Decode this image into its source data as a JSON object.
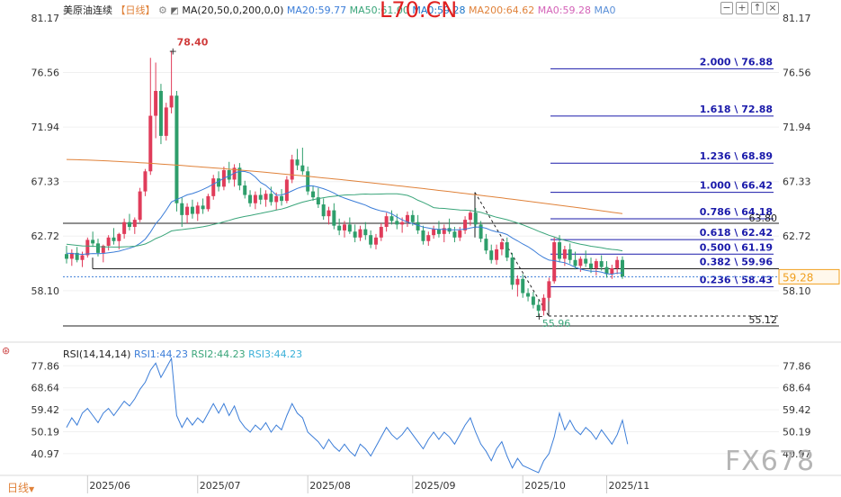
{
  "header": {
    "symbol": "美原油连续",
    "period": "日线",
    "ma_label": "MA(20,50,0,200,0,0)",
    "ma_values": [
      {
        "label": "MA20:59.77",
        "color": "#3b7dd8"
      },
      {
        "label": "MA50:61.00",
        "color": "#3aa57a"
      },
      {
        "label": "MA0:59.28",
        "color": "#1a74c8"
      },
      {
        "label": "MA200:64.62",
        "color": "#e0823a"
      },
      {
        "label": "MA0:59.28",
        "color": "#d463b8"
      },
      {
        "label": "MA0",
        "color": "#5a8fd8"
      }
    ],
    "watermark_top": "L70.CN"
  },
  "rsi_header": {
    "label": "RSI(14,14,14)",
    "values": [
      {
        "label": "RSI1:44.23",
        "color": "#3b7dd8"
      },
      {
        "label": "RSI2:44.23",
        "color": "#3aa57a"
      },
      {
        "label": "RSI3:44.23",
        "color": "#3ab0d8"
      }
    ]
  },
  "footer": {
    "period_button": "日线",
    "watermark": "FX678"
  },
  "colors": {
    "up": "#e03c5a",
    "down": "#2e9e6b",
    "ma20": "#3b7dd8",
    "ma50": "#3aa57a",
    "ma200": "#e0823a",
    "rsi": "#3b7dd8",
    "fib": "#1a1aaa",
    "current_price": "#f0a020"
  },
  "chart_data": [
    {
      "type": "candlestick",
      "title": "美原油连续 日线",
      "y_ticks": [
        "81.17",
        "76.56",
        "71.94",
        "67.33",
        "62.72",
        "58.10"
      ],
      "ylim": [
        55.12,
        81.17
      ],
      "x_ticks": [
        "2025/06",
        "2025/07",
        "2025/08",
        "2025/09",
        "2025/10",
        "2025/11"
      ],
      "annotations": {
        "high": "78.40",
        "low": "55.96",
        "level_low": "55.12",
        "level_mid": "63.80",
        "current_price": "59.28"
      },
      "fibonacci": [
        {
          "ratio": "2.000",
          "price": "76.88",
          "value": 76.88
        },
        {
          "ratio": "1.618",
          "price": "72.88",
          "value": 72.88
        },
        {
          "ratio": "1.236",
          "price": "68.89",
          "value": 68.89
        },
        {
          "ratio": "1.000",
          "price": "66.42",
          "value": 66.42
        },
        {
          "ratio": "0.786",
          "price": "64.18",
          "value": 64.18
        },
        {
          "ratio": "0.618",
          "price": "62.42",
          "value": 62.42
        },
        {
          "ratio": "0.500",
          "price": "61.19",
          "value": 61.19
        },
        {
          "ratio": "0.382",
          "price": "59.96",
          "value": 59.96
        },
        {
          "ratio": "0.236",
          "price": "58.43",
          "value": 58.43
        }
      ],
      "candles": [
        {
          "o": 61.2,
          "h": 61.9,
          "l": 60.4,
          "c": 60.8
        },
        {
          "o": 60.8,
          "h": 61.6,
          "l": 60.2,
          "c": 61.3
        },
        {
          "o": 61.3,
          "h": 61.8,
          "l": 60.5,
          "c": 60.7
        },
        {
          "o": 60.7,
          "h": 61.4,
          "l": 60.1,
          "c": 61.1
        },
        {
          "o": 61.1,
          "h": 62.6,
          "l": 60.9,
          "c": 62.4
        },
        {
          "o": 62.4,
          "h": 63.1,
          "l": 61.8,
          "c": 62.1
        },
        {
          "o": 62.1,
          "h": 62.5,
          "l": 61.0,
          "c": 61.3
        },
        {
          "o": 61.3,
          "h": 62.0,
          "l": 60.5,
          "c": 61.9
        },
        {
          "o": 61.9,
          "h": 62.8,
          "l": 61.5,
          "c": 62.6
        },
        {
          "o": 62.6,
          "h": 63.4,
          "l": 62.0,
          "c": 62.3
        },
        {
          "o": 62.3,
          "h": 63.0,
          "l": 61.6,
          "c": 62.9
        },
        {
          "o": 62.9,
          "h": 64.2,
          "l": 62.5,
          "c": 63.9
        },
        {
          "o": 63.9,
          "h": 64.6,
          "l": 63.2,
          "c": 63.5
        },
        {
          "o": 63.5,
          "h": 64.3,
          "l": 62.9,
          "c": 64.1
        },
        {
          "o": 64.1,
          "h": 66.8,
          "l": 63.9,
          "c": 66.5
        },
        {
          "o": 66.5,
          "h": 68.4,
          "l": 66.1,
          "c": 68.2
        },
        {
          "o": 68.2,
          "h": 77.8,
          "l": 67.9,
          "c": 72.9
        },
        {
          "o": 72.9,
          "h": 77.4,
          "l": 71.0,
          "c": 75.0
        },
        {
          "o": 75.0,
          "h": 75.6,
          "l": 70.5,
          "c": 71.2
        },
        {
          "o": 71.2,
          "h": 74.0,
          "l": 70.8,
          "c": 73.6
        },
        {
          "o": 73.6,
          "h": 78.4,
          "l": 73.1,
          "c": 74.6
        },
        {
          "o": 74.6,
          "h": 75.0,
          "l": 64.8,
          "c": 65.5
        },
        {
          "o": 65.5,
          "h": 66.0,
          "l": 63.5,
          "c": 64.5
        },
        {
          "o": 64.5,
          "h": 65.5,
          "l": 63.8,
          "c": 65.2
        },
        {
          "o": 65.2,
          "h": 65.8,
          "l": 64.2,
          "c": 64.6
        },
        {
          "o": 64.6,
          "h": 65.6,
          "l": 64.0,
          "c": 65.3
        },
        {
          "o": 65.3,
          "h": 65.9,
          "l": 64.6,
          "c": 65.0
        },
        {
          "o": 65.0,
          "h": 66.3,
          "l": 64.8,
          "c": 66.1
        },
        {
          "o": 66.1,
          "h": 67.9,
          "l": 65.8,
          "c": 67.6
        },
        {
          "o": 67.6,
          "h": 68.2,
          "l": 66.5,
          "c": 66.9
        },
        {
          "o": 66.9,
          "h": 68.6,
          "l": 66.6,
          "c": 68.3
        },
        {
          "o": 68.3,
          "h": 69.0,
          "l": 67.2,
          "c": 67.5
        },
        {
          "o": 67.5,
          "h": 68.8,
          "l": 66.9,
          "c": 68.5
        },
        {
          "o": 68.5,
          "h": 68.9,
          "l": 66.6,
          "c": 67.0
        },
        {
          "o": 67.0,
          "h": 67.4,
          "l": 65.9,
          "c": 66.2
        },
        {
          "o": 66.2,
          "h": 66.6,
          "l": 65.2,
          "c": 65.5
        },
        {
          "o": 65.5,
          "h": 66.5,
          "l": 65.0,
          "c": 66.2
        },
        {
          "o": 66.2,
          "h": 66.8,
          "l": 65.4,
          "c": 65.8
        },
        {
          "o": 65.8,
          "h": 66.6,
          "l": 65.2,
          "c": 66.3
        },
        {
          "o": 66.3,
          "h": 66.9,
          "l": 65.3,
          "c": 65.6
        },
        {
          "o": 65.6,
          "h": 66.4,
          "l": 64.9,
          "c": 66.1
        },
        {
          "o": 66.1,
          "h": 66.7,
          "l": 65.3,
          "c": 65.7
        },
        {
          "o": 65.7,
          "h": 67.8,
          "l": 65.5,
          "c": 67.5
        },
        {
          "o": 67.5,
          "h": 69.6,
          "l": 67.2,
          "c": 69.2
        },
        {
          "o": 69.2,
          "h": 70.1,
          "l": 68.3,
          "c": 68.7
        },
        {
          "o": 68.7,
          "h": 70.2,
          "l": 67.9,
          "c": 68.2
        },
        {
          "o": 68.2,
          "h": 68.6,
          "l": 66.2,
          "c": 66.5
        },
        {
          "o": 66.5,
          "h": 67.0,
          "l": 65.7,
          "c": 66.0
        },
        {
          "o": 66.0,
          "h": 66.8,
          "l": 65.1,
          "c": 65.4
        },
        {
          "o": 65.4,
          "h": 65.9,
          "l": 64.1,
          "c": 64.4
        },
        {
          "o": 64.4,
          "h": 65.2,
          "l": 63.7,
          "c": 64.9
        },
        {
          "o": 64.9,
          "h": 65.5,
          "l": 63.3,
          "c": 63.6
        },
        {
          "o": 63.6,
          "h": 64.2,
          "l": 62.8,
          "c": 63.2
        },
        {
          "o": 63.2,
          "h": 64.0,
          "l": 62.6,
          "c": 63.7
        },
        {
          "o": 63.7,
          "h": 64.3,
          "l": 62.9,
          "c": 63.1
        },
        {
          "o": 63.1,
          "h": 63.7,
          "l": 62.2,
          "c": 62.6
        },
        {
          "o": 62.6,
          "h": 63.6,
          "l": 62.3,
          "c": 63.3
        },
        {
          "o": 63.3,
          "h": 63.9,
          "l": 62.4,
          "c": 62.8
        },
        {
          "o": 62.8,
          "h": 63.2,
          "l": 61.7,
          "c": 62.0
        },
        {
          "o": 62.0,
          "h": 62.9,
          "l": 61.6,
          "c": 62.6
        },
        {
          "o": 62.6,
          "h": 63.8,
          "l": 62.3,
          "c": 63.5
        },
        {
          "o": 63.5,
          "h": 64.7,
          "l": 63.1,
          "c": 64.4
        },
        {
          "o": 64.4,
          "h": 64.9,
          "l": 63.7,
          "c": 64.0
        },
        {
          "o": 64.0,
          "h": 64.6,
          "l": 63.3,
          "c": 63.7
        },
        {
          "o": 63.7,
          "h": 64.3,
          "l": 63.0,
          "c": 63.9
        },
        {
          "o": 63.9,
          "h": 64.8,
          "l": 63.5,
          "c": 64.5
        },
        {
          "o": 64.5,
          "h": 64.9,
          "l": 63.6,
          "c": 63.9
        },
        {
          "o": 63.9,
          "h": 64.5,
          "l": 62.9,
          "c": 63.2
        },
        {
          "o": 63.2,
          "h": 63.6,
          "l": 62.0,
          "c": 62.3
        },
        {
          "o": 62.3,
          "h": 63.1,
          "l": 61.9,
          "c": 62.8
        },
        {
          "o": 62.8,
          "h": 63.6,
          "l": 62.5,
          "c": 63.3
        },
        {
          "o": 63.3,
          "h": 64.0,
          "l": 62.6,
          "c": 62.9
        },
        {
          "o": 62.9,
          "h": 63.7,
          "l": 62.2,
          "c": 63.4
        },
        {
          "o": 63.4,
          "h": 64.2,
          "l": 62.9,
          "c": 63.1
        },
        {
          "o": 63.1,
          "h": 63.5,
          "l": 62.2,
          "c": 62.6
        },
        {
          "o": 62.6,
          "h": 63.5,
          "l": 62.3,
          "c": 63.2
        },
        {
          "o": 63.2,
          "h": 64.4,
          "l": 62.9,
          "c": 64.1
        },
        {
          "o": 64.1,
          "h": 64.9,
          "l": 63.6,
          "c": 64.7
        },
        {
          "o": 64.7,
          "h": 65.1,
          "l": 63.4,
          "c": 63.7
        },
        {
          "o": 63.7,
          "h": 64.0,
          "l": 62.2,
          "c": 62.5
        },
        {
          "o": 62.5,
          "h": 62.9,
          "l": 61.2,
          "c": 61.5
        },
        {
          "o": 61.5,
          "h": 62.0,
          "l": 60.4,
          "c": 60.7
        },
        {
          "o": 60.7,
          "h": 62.0,
          "l": 60.3,
          "c": 61.6
        },
        {
          "o": 61.6,
          "h": 62.5,
          "l": 61.1,
          "c": 62.2
        },
        {
          "o": 62.2,
          "h": 62.6,
          "l": 60.6,
          "c": 60.9
        },
        {
          "o": 60.9,
          "h": 61.3,
          "l": 58.2,
          "c": 58.6
        },
        {
          "o": 58.6,
          "h": 59.4,
          "l": 57.6,
          "c": 59.1
        },
        {
          "o": 59.1,
          "h": 59.5,
          "l": 57.5,
          "c": 57.9
        },
        {
          "o": 57.9,
          "h": 58.3,
          "l": 57.2,
          "c": 57.6
        },
        {
          "o": 57.6,
          "h": 58.0,
          "l": 56.6,
          "c": 56.9
        },
        {
          "o": 56.9,
          "h": 57.3,
          "l": 55.96,
          "c": 56.4
        },
        {
          "o": 56.4,
          "h": 57.8,
          "l": 56.0,
          "c": 57.5
        },
        {
          "o": 57.5,
          "h": 59.2,
          "l": 57.2,
          "c": 58.9
        },
        {
          "o": 58.9,
          "h": 62.6,
          "l": 58.7,
          "c": 62.2
        },
        {
          "o": 62.2,
          "h": 62.8,
          "l": 60.5,
          "c": 60.8
        },
        {
          "o": 60.8,
          "h": 61.9,
          "l": 60.2,
          "c": 61.6
        },
        {
          "o": 61.6,
          "h": 62.1,
          "l": 60.4,
          "c": 60.7
        },
        {
          "o": 60.7,
          "h": 61.4,
          "l": 59.9,
          "c": 60.2
        },
        {
          "o": 60.2,
          "h": 61.0,
          "l": 59.7,
          "c": 60.8
        },
        {
          "o": 60.8,
          "h": 61.5,
          "l": 60.1,
          "c": 60.4
        },
        {
          "o": 60.4,
          "h": 60.9,
          "l": 59.6,
          "c": 60.0
        },
        {
          "o": 60.0,
          "h": 60.8,
          "l": 59.4,
          "c": 60.6
        },
        {
          "o": 60.6,
          "h": 61.1,
          "l": 59.8,
          "c": 60.1
        },
        {
          "o": 60.1,
          "h": 60.6,
          "l": 59.2,
          "c": 59.5
        },
        {
          "o": 59.5,
          "h": 60.3,
          "l": 59.1,
          "c": 60.0
        },
        {
          "o": 60.0,
          "h": 61.0,
          "l": 59.5,
          "c": 60.7
        },
        {
          "o": 60.7,
          "h": 61.0,
          "l": 59.1,
          "c": 59.3
        }
      ]
    },
    {
      "type": "line",
      "title": "RSI(14,14,14)",
      "y_ticks": [
        "77.86",
        "68.64",
        "59.42",
        "50.19",
        "40.97"
      ],
      "ylim": [
        33,
        81
      ],
      "series": [
        {
          "name": "RSI1",
          "values": [
            52,
            56,
            53,
            58,
            60,
            57,
            54,
            58,
            60,
            57,
            60,
            63,
            61,
            64,
            68,
            71,
            76,
            79,
            73,
            77,
            81,
            57,
            52,
            56,
            53,
            56,
            54,
            58,
            62,
            58,
            62,
            57,
            61,
            55,
            52,
            50,
            53,
            51,
            54,
            50,
            53,
            51,
            57,
            62,
            58,
            56,
            50,
            48,
            46,
            43,
            47,
            44,
            42,
            45,
            42,
            40,
            45,
            43,
            40,
            44,
            48,
            52,
            49,
            47,
            49,
            52,
            49,
            46,
            43,
            47,
            50,
            47,
            50,
            48,
            45,
            49,
            53,
            56,
            50,
            45,
            42,
            38,
            43,
            46,
            40,
            35,
            39,
            36,
            35,
            34,
            33,
            38,
            41,
            48,
            58,
            51,
            55,
            51,
            49,
            52,
            50,
            47,
            51,
            48,
            45,
            49,
            55,
            45
          ]
        }
      ]
    }
  ]
}
